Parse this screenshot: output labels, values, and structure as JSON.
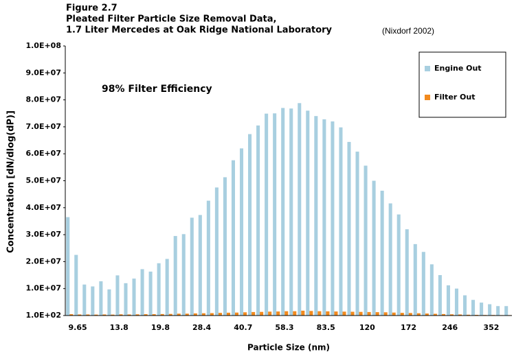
{
  "chart_data": {
    "type": "bar",
    "title_lines": [
      "Figure   2.7",
      "Pleated Filter Particle Size Removal Data,",
      "1.7 Liter Mercedes at Oak Ridge National Laboratory"
    ],
    "source": "(Nixdorf 2002)",
    "annotation": "98% Filter Efficiency",
    "x_label": "Particle Size (nm)",
    "y_label": "Concentration [dN/dlog(dP)]",
    "categories": [
      null,
      "9.65",
      null,
      null,
      null,
      null,
      "13.8",
      null,
      null,
      null,
      null,
      "19.8",
      null,
      null,
      null,
      null,
      "28.4",
      null,
      null,
      null,
      null,
      "40.7",
      null,
      null,
      null,
      null,
      "58.3",
      null,
      null,
      null,
      null,
      "83.5",
      null,
      null,
      null,
      null,
      "120",
      null,
      null,
      null,
      null,
      "172",
      null,
      null,
      null,
      null,
      "246",
      null,
      null,
      null,
      null,
      "352",
      null,
      null
    ],
    "series": [
      {
        "name": "Engine Out",
        "color": "#a8cfe0",
        "values": [
          36500000,
          22500000,
          11500000,
          10800000,
          12700000,
          9700000,
          14900000,
          12000000,
          13700000,
          17200000,
          16300000,
          19400000,
          21000000,
          29500000,
          30200000,
          36300000,
          37300000,
          42600000,
          47500000,
          51300000,
          57600000,
          62000000,
          67300000,
          70500000,
          74900000,
          75000000,
          77000000,
          76800000,
          78800000,
          76000000,
          74000000,
          72800000,
          72000000,
          69800000,
          64400000,
          60800000,
          55600000,
          50000000,
          46300000,
          41600000,
          37500000,
          32000000,
          26500000,
          23600000,
          19000000,
          15000000,
          11200000,
          10000000,
          7500000,
          5800000,
          4800000,
          4200000,
          3500000,
          3500000
        ]
      },
      {
        "name": "Filter Out",
        "color": "#f28a1e",
        "values": [
          500000,
          400000,
          400000,
          350000,
          400000,
          350000,
          450000,
          400000,
          450000,
          500000,
          500000,
          550000,
          600000,
          700000,
          700000,
          800000,
          850000,
          900000,
          1000000,
          1050000,
          1100000,
          1200000,
          1300000,
          1350000,
          1450000,
          1500000,
          1600000,
          1600000,
          1800000,
          1700000,
          1600000,
          1550000,
          1500000,
          1450000,
          1400000,
          1350000,
          1300000,
          1250000,
          1200000,
          1100000,
          1000000,
          950000,
          850000,
          750000,
          650000,
          550000,
          450000,
          400000,
          300000,
          250000,
          200000,
          200000,
          150000,
          150000
        ]
      }
    ],
    "ylim": [
      100,
      100000000
    ],
    "yticks": [
      {
        "value": 100,
        "label": "1.0E+02"
      },
      {
        "value": 10000000,
        "label": "1.0E+07"
      },
      {
        "value": 20000000,
        "label": "2.0E+07"
      },
      {
        "value": 30000000,
        "label": "3.0E+07"
      },
      {
        "value": 40000000,
        "label": "4.0E+07"
      },
      {
        "value": 50000000,
        "label": "5.0E+07"
      },
      {
        "value": 60000000,
        "label": "6.0E+07"
      },
      {
        "value": 70000000,
        "label": "7.0E+07"
      },
      {
        "value": 80000000,
        "label": "8.0E+07"
      },
      {
        "value": 90000000,
        "label": "9.0E+07"
      },
      {
        "value": 100000000,
        "label": "1.0E+08"
      }
    ],
    "legend": "upper right"
  }
}
